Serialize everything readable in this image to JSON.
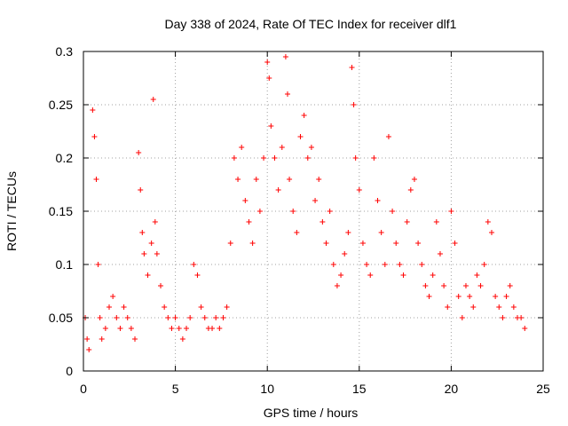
{
  "chart_data": {
    "type": "scatter",
    "title": "Day 338 of 2024, Rate Of TEC Index for receiver dlf1",
    "xlabel": "GPS time / hours",
    "ylabel": "ROTI / TECUs",
    "xlim": [
      0,
      25
    ],
    "ylim": [
      0,
      0.3
    ],
    "xticks": [
      "0",
      "5",
      "10",
      "15",
      "20",
      "25"
    ],
    "yticks": [
      "0",
      "0.05",
      "0.1",
      "0.15",
      "0.2",
      "0.25",
      "0.3"
    ],
    "grid": true,
    "marker": "plus",
    "color": "#ff0000",
    "series": [
      {
        "values_note_free": true,
        "x": [
          0.1,
          0.2,
          0.3,
          0.5,
          0.6,
          0.7,
          0.8,
          0.9,
          1.0,
          1.2,
          1.4,
          1.6,
          1.8,
          2.0,
          2.2,
          2.4,
          2.6,
          2.8,
          3.0,
          3.1,
          3.2,
          3.3,
          3.5,
          3.7,
          3.8,
          3.9,
          4.0,
          4.2,
          4.4,
          4.6,
          4.8,
          5.0,
          5.2,
          5.4,
          5.6,
          5.8,
          6.0,
          6.2,
          6.4,
          6.6,
          6.8,
          7.0,
          7.2,
          7.4,
          7.6,
          7.8,
          8.0,
          8.2,
          8.4,
          8.6,
          8.8,
          9.0,
          9.2,
          9.4,
          9.6,
          9.8,
          10.0,
          10.1,
          10.2,
          10.4,
          10.6,
          10.8,
          11.0,
          11.1,
          11.2,
          11.4,
          11.6,
          11.8,
          12.0,
          12.2,
          12.4,
          12.6,
          12.8,
          13.0,
          13.2,
          13.4,
          13.6,
          13.8,
          14.0,
          14.2,
          14.4,
          14.6,
          14.7,
          14.8,
          15.0,
          15.2,
          15.4,
          15.6,
          15.8,
          16.0,
          16.2,
          16.4,
          16.6,
          16.8,
          17.0,
          17.2,
          17.4,
          17.6,
          17.8,
          18.0,
          18.2,
          18.4,
          18.6,
          18.8,
          19.0,
          19.2,
          19.4,
          19.6,
          19.8,
          20.0,
          20.2,
          20.4,
          20.6,
          20.8,
          21.0,
          21.2,
          21.4,
          21.6,
          21.8,
          22.0,
          22.2,
          22.4,
          22.6,
          22.8,
          23.0,
          23.2,
          23.4,
          23.6,
          23.8,
          24.0
        ],
        "y": [
          0.05,
          0.03,
          0.02,
          0.245,
          0.22,
          0.18,
          0.1,
          0.05,
          0.03,
          0.04,
          0.06,
          0.07,
          0.05,
          0.04,
          0.06,
          0.05,
          0.04,
          0.03,
          0.205,
          0.17,
          0.13,
          0.11,
          0.09,
          0.12,
          0.255,
          0.14,
          0.11,
          0.08,
          0.06,
          0.05,
          0.04,
          0.05,
          0.04,
          0.03,
          0.04,
          0.05,
          0.1,
          0.09,
          0.06,
          0.05,
          0.04,
          0.04,
          0.05,
          0.04,
          0.05,
          0.06,
          0.12,
          0.2,
          0.18,
          0.21,
          0.16,
          0.14,
          0.12,
          0.18,
          0.15,
          0.2,
          0.29,
          0.275,
          0.23,
          0.2,
          0.17,
          0.21,
          0.295,
          0.26,
          0.18,
          0.15,
          0.13,
          0.22,
          0.24,
          0.2,
          0.21,
          0.16,
          0.18,
          0.14,
          0.12,
          0.15,
          0.1,
          0.08,
          0.09,
          0.11,
          0.13,
          0.285,
          0.25,
          0.2,
          0.17,
          0.12,
          0.1,
          0.09,
          0.2,
          0.16,
          0.13,
          0.1,
          0.22,
          0.15,
          0.12,
          0.1,
          0.09,
          0.14,
          0.17,
          0.18,
          0.12,
          0.1,
          0.08,
          0.07,
          0.09,
          0.14,
          0.11,
          0.08,
          0.06,
          0.15,
          0.12,
          0.07,
          0.05,
          0.08,
          0.07,
          0.06,
          0.09,
          0.08,
          0.1,
          0.14,
          0.13,
          0.07,
          0.06,
          0.05,
          0.07,
          0.08,
          0.06,
          0.05,
          0.05,
          0.04
        ]
      }
    ]
  }
}
